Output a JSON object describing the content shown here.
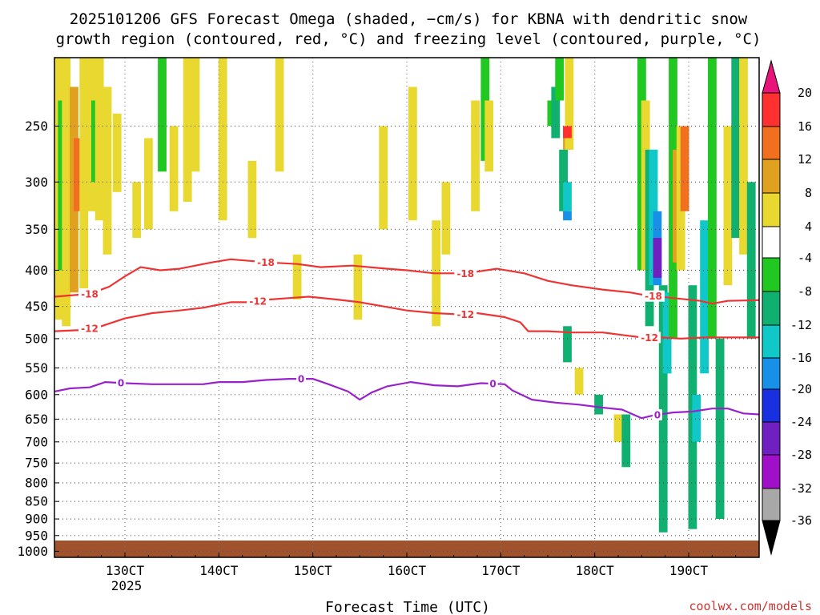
{
  "chart_data": {
    "type": "heatmap",
    "title_line1": "2025101206 GFS Forecast Omega (shaded, −cm/s) for KBNA with dendritic snow",
    "title_line2": "growth region (contoured, red, °C) and freezing level (contoured, purple, °C)",
    "xlabel": "Forecast Time (UTC)",
    "x_tick_labels": [
      "130CT",
      "140CT",
      "150CT",
      "160CT",
      "170CT",
      "180CT",
      "190CT"
    ],
    "x_ticks_hours_from_init": [
      18,
      42,
      66,
      90,
      114,
      138,
      162
    ],
    "x_range_hours": [
      0,
      180
    ],
    "year_label": "2025",
    "y_tick_labels": [
      "250",
      "300",
      "350",
      "400",
      "450",
      "500",
      "550",
      "600",
      "650",
      "700",
      "750",
      "800",
      "850",
      "900",
      "950",
      "1000"
    ],
    "y_ticks_hpa": [
      250,
      300,
      350,
      400,
      450,
      500,
      550,
      600,
      650,
      700,
      750,
      800,
      850,
      900,
      950,
      1000
    ],
    "y_range_hpa": [
      200,
      1020
    ],
    "grid": true,
    "colorbar": {
      "labels": [
        "20",
        "16",
        "12",
        "8",
        "4",
        "-4",
        "-8",
        "-12",
        "-16",
        "-20",
        "-24",
        "-28",
        "-32",
        "-36"
      ],
      "colors": [
        "#e8147a",
        "#ff3030",
        "#f07020",
        "#e0a020",
        "#e8d830",
        "#ffffff",
        "#22c822",
        "#10b070",
        "#10c8c8",
        "#1890e8",
        "#1830e0",
        "#7020c0",
        "#a010c8",
        "#a8a8a8",
        "#000000"
      ]
    },
    "contours": [
      {
        "name": "dendritic-top",
        "label": "-18",
        "color": "#ee3333",
        "points": [
          [
            0,
            436
          ],
          [
            9,
            432
          ],
          [
            14,
            422
          ],
          [
            18,
            408
          ],
          [
            22,
            396
          ],
          [
            27,
            400
          ],
          [
            32,
            398
          ],
          [
            40,
            390
          ],
          [
            45,
            386
          ],
          [
            55,
            390
          ],
          [
            62,
            392
          ],
          [
            68,
            396
          ],
          [
            76,
            394
          ],
          [
            85,
            398
          ],
          [
            90,
            400
          ],
          [
            97,
            404
          ],
          [
            105,
            404
          ],
          [
            113,
            398
          ],
          [
            120,
            404
          ],
          [
            126,
            414
          ],
          [
            132,
            420
          ],
          [
            140,
            426
          ],
          [
            147,
            430
          ],
          [
            151,
            434
          ],
          [
            158,
            438
          ],
          [
            165,
            442
          ],
          [
            168,
            446
          ],
          [
            172,
            442
          ],
          [
            180,
            441
          ]
        ],
        "label_hours": [
          9,
          54,
          105,
          153
        ]
      },
      {
        "name": "dendritic-bottom",
        "label": "-12",
        "color": "#ee3333",
        "points": [
          [
            0,
            488
          ],
          [
            7,
            486
          ],
          [
            12,
            480
          ],
          [
            18,
            468
          ],
          [
            25,
            460
          ],
          [
            32,
            456
          ],
          [
            38,
            452
          ],
          [
            45,
            444
          ],
          [
            50,
            444
          ],
          [
            55,
            440
          ],
          [
            60,
            438
          ],
          [
            65,
            436
          ],
          [
            72,
            440
          ],
          [
            78,
            444
          ],
          [
            84,
            450
          ],
          [
            90,
            456
          ],
          [
            97,
            460
          ],
          [
            104,
            462
          ],
          [
            108,
            460
          ],
          [
            115,
            466
          ],
          [
            119,
            474
          ],
          [
            121,
            488
          ],
          [
            126,
            488
          ],
          [
            132,
            490
          ],
          [
            140,
            490
          ],
          [
            145,
            494
          ],
          [
            150,
            498
          ],
          [
            155,
            498
          ],
          [
            160,
            500
          ],
          [
            166,
            498
          ],
          [
            172,
            498
          ],
          [
            180,
            498
          ]
        ],
        "label_hours": [
          9,
          52,
          105,
          152
        ]
      },
      {
        "name": "freezing-level",
        "label": "0",
        "color": "#9922cc",
        "points": [
          [
            0,
            594
          ],
          [
            4,
            588
          ],
          [
            9,
            586
          ],
          [
            13,
            576
          ],
          [
            18,
            578
          ],
          [
            25,
            580
          ],
          [
            32,
            580
          ],
          [
            38,
            580
          ],
          [
            42,
            576
          ],
          [
            48,
            576
          ],
          [
            54,
            572
          ],
          [
            60,
            570
          ],
          [
            66,
            570
          ],
          [
            70,
            580
          ],
          [
            75,
            594
          ],
          [
            78,
            610
          ],
          [
            81,
            596
          ],
          [
            85,
            584
          ],
          [
            91,
            576
          ],
          [
            97,
            582
          ],
          [
            103,
            584
          ],
          [
            109,
            578
          ],
          [
            115,
            580
          ],
          [
            117,
            592
          ],
          [
            122,
            610
          ],
          [
            128,
            616
          ],
          [
            134,
            620
          ],
          [
            140,
            626
          ],
          [
            145,
            630
          ],
          [
            150,
            648
          ],
          [
            153,
            642
          ],
          [
            158,
            636
          ],
          [
            163,
            634
          ],
          [
            168,
            628
          ],
          [
            172,
            628
          ],
          [
            176,
            638
          ],
          [
            180,
            640
          ]
        ],
        "label_hours": [
          17,
          63,
          112,
          154
        ]
      }
    ],
    "shaded_regions": [
      {
        "hour": 1.0,
        "p1": 200,
        "p2": 470,
        "value": 4
      },
      {
        "hour": 2.0,
        "p1": 230,
        "p2": 400,
        "value": -4
      },
      {
        "hour": 3.0,
        "p1": 200,
        "p2": 480,
        "value": 4
      },
      {
        "hour": 5.0,
        "p1": 220,
        "p2": 430,
        "value": 8
      },
      {
        "hour": 6.0,
        "p1": 260,
        "p2": 330,
        "value": 12
      },
      {
        "hour": 7.5,
        "p1": 200,
        "p2": 440,
        "value": 4
      },
      {
        "hour": 9.5,
        "p1": 200,
        "p2": 330,
        "value": 4
      },
      {
        "hour": 10.5,
        "p1": 230,
        "p2": 300,
        "value": -4
      },
      {
        "hour": 11.5,
        "p1": 200,
        "p2": 340,
        "value": 4
      },
      {
        "hour": 13.5,
        "p1": 220,
        "p2": 380,
        "value": 4
      },
      {
        "hour": 16.0,
        "p1": 240,
        "p2": 310,
        "value": 4
      },
      {
        "hour": 21.0,
        "p1": 300,
        "p2": 360,
        "value": 4
      },
      {
        "hour": 24.0,
        "p1": 260,
        "p2": 350,
        "value": 4
      },
      {
        "hour": 27.5,
        "p1": 200,
        "p2": 290,
        "value": -4
      },
      {
        "hour": 30.5,
        "p1": 250,
        "p2": 330,
        "value": 4
      },
      {
        "hour": 34.0,
        "p1": 200,
        "p2": 320,
        "value": 4
      },
      {
        "hour": 36.0,
        "p1": 200,
        "p2": 290,
        "value": 4
      },
      {
        "hour": 43.0,
        "p1": 200,
        "p2": 340,
        "value": 4
      },
      {
        "hour": 50.5,
        "p1": 280,
        "p2": 360,
        "value": 4
      },
      {
        "hour": 57.5,
        "p1": 200,
        "p2": 290,
        "value": 4
      },
      {
        "hour": 62.0,
        "p1": 380,
        "p2": 440,
        "value": 4
      },
      {
        "hour": 77.5,
        "p1": 380,
        "p2": 470,
        "value": 4
      },
      {
        "hour": 84.0,
        "p1": 250,
        "p2": 350,
        "value": 4
      },
      {
        "hour": 91.5,
        "p1": 220,
        "p2": 340,
        "value": 4
      },
      {
        "hour": 97.5,
        "p1": 340,
        "p2": 480,
        "value": 4
      },
      {
        "hour": 100.0,
        "p1": 300,
        "p2": 380,
        "value": 4
      },
      {
        "hour": 107.5,
        "p1": 230,
        "p2": 330,
        "value": 4
      },
      {
        "hour": 110.0,
        "p1": 200,
        "p2": 280,
        "value": -4
      },
      {
        "hour": 111.0,
        "p1": 230,
        "p2": 290,
        "value": 4
      },
      {
        "hour": 127.0,
        "p1": 230,
        "p2": 250,
        "value": -4
      },
      {
        "hour": 128.0,
        "p1": 220,
        "p2": 260,
        "value": -8
      },
      {
        "hour": 129.0,
        "p1": 200,
        "p2": 230,
        "value": -4
      },
      {
        "hour": 130.0,
        "p1": 270,
        "p2": 330,
        "value": -8
      },
      {
        "hour": 131.0,
        "p1": 250,
        "p2": 270,
        "value": 8
      },
      {
        "hour": 131.5,
        "p1": 200,
        "p2": 270,
        "value": 4
      },
      {
        "hour": 131.0,
        "p1": 300,
        "p2": 330,
        "value": -12
      },
      {
        "hour": 131.0,
        "p1": 330,
        "p2": 340,
        "value": -16
      },
      {
        "hour": 131.0,
        "p1": 250,
        "p2": 260,
        "value": 16
      },
      {
        "hour": 131.0,
        "p1": 480,
        "p2": 540,
        "value": -8
      },
      {
        "hour": 134.0,
        "p1": 550,
        "p2": 600,
        "value": 4
      },
      {
        "hour": 139.0,
        "p1": 600,
        "p2": 640,
        "value": -8
      },
      {
        "hour": 144.0,
        "p1": 640,
        "p2": 700,
        "value": 4
      },
      {
        "hour": 146.0,
        "p1": 640,
        "p2": 760,
        "value": -8
      },
      {
        "hour": 150.0,
        "p1": 200,
        "p2": 400,
        "value": -4
      },
      {
        "hour": 151.0,
        "p1": 230,
        "p2": 400,
        "value": 4
      },
      {
        "hour": 152.0,
        "p1": 270,
        "p2": 480,
        "value": -8
      },
      {
        "hour": 153.0,
        "p1": 270,
        "p2": 420,
        "value": -12
      },
      {
        "hour": 154.0,
        "p1": 330,
        "p2": 420,
        "value": -16
      },
      {
        "hour": 154.0,
        "p1": 360,
        "p2": 410,
        "value": -24
      },
      {
        "hour": 155.5,
        "p1": 420,
        "p2": 940,
        "value": -8
      },
      {
        "hour": 156.5,
        "p1": 430,
        "p2": 560,
        "value": -12
      },
      {
        "hour": 158.0,
        "p1": 200,
        "p2": 500,
        "value": -4
      },
      {
        "hour": 159.0,
        "p1": 270,
        "p2": 390,
        "value": 8
      },
      {
        "hour": 160.0,
        "p1": 250,
        "p2": 400,
        "value": 4
      },
      {
        "hour": 161.0,
        "p1": 250,
        "p2": 330,
        "value": 12
      },
      {
        "hour": 163.0,
        "p1": 420,
        "p2": 930,
        "value": -8
      },
      {
        "hour": 164.0,
        "p1": 600,
        "p2": 700,
        "value": -12
      },
      {
        "hour": 166.0,
        "p1": 340,
        "p2": 560,
        "value": -12
      },
      {
        "hour": 168.0,
        "p1": 200,
        "p2": 500,
        "value": -4
      },
      {
        "hour": 170.0,
        "p1": 500,
        "p2": 900,
        "value": -8
      },
      {
        "hour": 172.0,
        "p1": 250,
        "p2": 420,
        "value": 4
      },
      {
        "hour": 174.0,
        "p1": 200,
        "p2": 360,
        "value": -8
      },
      {
        "hour": 176.0,
        "p1": 200,
        "p2": 380,
        "value": 4
      },
      {
        "hour": 178.0,
        "p1": 300,
        "p2": 500,
        "value": -8
      }
    ]
  },
  "credit": "coolwx.com/models"
}
